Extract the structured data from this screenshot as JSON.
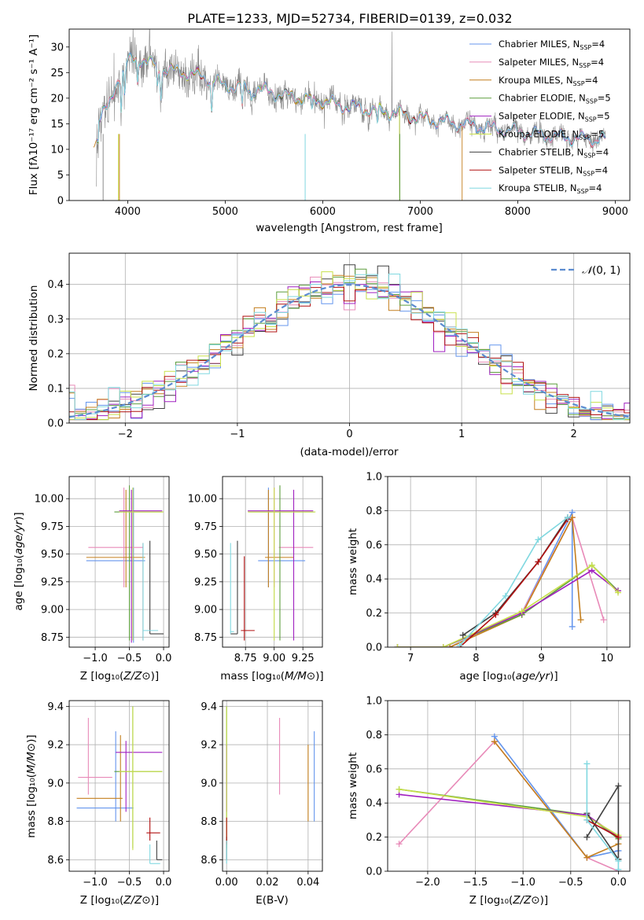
{
  "figure": {
    "title": "PLATE=1233, MJD=52734, FIBERID=0139, z=0.032"
  },
  "legend": [
    {
      "label": "Chabrier MILES, N",
      "sub": "SSP",
      "tail": "=4",
      "color": "#6495ED"
    },
    {
      "label": "Salpeter MILES, N",
      "sub": "SSP",
      "tail": "=4",
      "color": "#E88AB8"
    },
    {
      "label": "Kroupa MILES, N",
      "sub": "SSP",
      "tail": "=4",
      "color": "#C47F1E"
    },
    {
      "label": "Chabrier ELODIE, N",
      "sub": "SSP",
      "tail": "=5",
      "color": "#5E9E3E"
    },
    {
      "label": "Salpeter ELODIE, N",
      "sub": "SSP",
      "tail": "=5",
      "color": "#A020C0"
    },
    {
      "label": "Kroupa ELODIE, N",
      "sub": "SSP",
      "tail": "=5",
      "color": "#C8E04A"
    },
    {
      "label": "Chabrier STELIB, N",
      "sub": "SSP",
      "tail": "=4",
      "color": "#404040"
    },
    {
      "label": "Salpeter STELIB, N",
      "sub": "SSP",
      "tail": "=4",
      "color": "#B01010"
    },
    {
      "label": "Kroupa STELIB, N",
      "sub": "SSP",
      "tail": "=4",
      "color": "#80D8E0"
    }
  ],
  "chart_data": [
    {
      "id": "spectrum",
      "type": "line",
      "title": "PLATE=1233, MJD=52734, FIBERID=0139, z=0.032",
      "xlabel": "wavelength [Angstrom, rest frame]",
      "ylabel": "Flux [f_λ 10^-17 erg cm^-2 s^-1 A^-1]",
      "xlim": [
        3400,
        9150
      ],
      "ylim": [
        0,
        33.5
      ],
      "xticks": [
        "4000",
        "5000",
        "6000",
        "7000",
        "8000",
        "9000"
      ],
      "yticks": [
        "0",
        "5",
        "10",
        "15",
        "20",
        "25",
        "30"
      ],
      "data_continuum": {
        "x": [
          3700,
          3800,
          3900,
          4000,
          4100,
          4200,
          4400,
          4600,
          4800,
          5000,
          5200,
          5400,
          5600,
          5800,
          6000,
          6200,
          6400,
          6600,
          6800,
          7000,
          7200,
          7400,
          7600,
          7800,
          8000,
          8200,
          8400,
          8600,
          8800,
          8900
        ],
        "y": [
          16,
          18,
          24,
          27,
          28,
          27,
          25.5,
          25,
          24,
          22.5,
          22,
          21.5,
          20.5,
          20,
          19.5,
          18.5,
          18,
          17.5,
          17,
          16,
          15.5,
          15,
          14.5,
          14,
          13.5,
          13,
          12.5,
          12.2,
          12,
          12
        ]
      }
    },
    {
      "id": "residuals",
      "type": "histogram",
      "xlabel": "(data-model)/error",
      "ylabel": "Normed distribution",
      "xlim": [
        -2.5,
        2.5
      ],
      "ylim": [
        0,
        0.49
      ],
      "xticks": [
        "−2",
        "−1",
        "0",
        "1",
        "2"
      ],
      "yticks": [
        "0.0",
        "0.1",
        "0.2",
        "0.3",
        "0.4"
      ],
      "reference": {
        "label": "N(0,1)",
        "mu": 0,
        "sigma": 1
      }
    },
    {
      "id": "age-vs-Z",
      "type": "errorbar",
      "xlabel": "Z [log10(Z/Z⊙)]",
      "ylabel": "age [log10(age/yr)]",
      "xlim": [
        -1.38,
        0.08
      ],
      "ylim": [
        8.66,
        10.2
      ],
      "xticks": [
        "−1.0",
        "−0.5",
        "0.0"
      ],
      "yticks": [
        "8.75",
        "9.00",
        "9.25",
        "9.50",
        "9.75",
        "10.00"
      ]
    },
    {
      "id": "age-vs-mass",
      "type": "errorbar",
      "xlabel": "mass [log10(M/M⊙)]",
      "ylabel": "",
      "xlim": [
        8.55,
        9.42
      ],
      "ylim": [
        8.66,
        10.2
      ],
      "xticks": [
        "8.75",
        "9.00",
        "9.25"
      ],
      "yticks": [
        "8.75",
        "9.00",
        "9.25",
        "9.50",
        "9.75",
        "10.00"
      ]
    },
    {
      "id": "mass-weight-vs-age",
      "type": "line",
      "xlabel": "age [log10(age/yr)]",
      "ylabel": "mass weight",
      "xlim": [
        6.65,
        10.35
      ],
      "ylim": [
        0,
        1
      ],
      "xticks": [
        "7",
        "8",
        "9",
        "10"
      ],
      "yticks": [
        "0.0",
        "0.2",
        "0.4",
        "0.6",
        "0.8",
        "1.0"
      ],
      "series": [
        {
          "name": "Chabrier MILES, N_SSP=4",
          "x": [
            7.6,
            8.7,
            9.47,
            9.47
          ],
          "y": [
            0.0,
            0.2,
            0.79,
            0.12
          ]
        },
        {
          "name": "Salpeter MILES, N_SSP=4",
          "x": [
            7.6,
            8.7,
            9.47,
            9.95
          ],
          "y": [
            0.0,
            0.2,
            0.76,
            0.16
          ]
        },
        {
          "name": "Kroupa MILES, N_SSP=4",
          "x": [
            7.6,
            8.7,
            9.47,
            9.6
          ],
          "y": [
            0.0,
            0.19,
            0.76,
            0.16
          ]
        },
        {
          "name": "Chabrier ELODIE, N_SSP=5",
          "x": [
            6.8,
            7.5,
            8.7,
            9.77,
            10.17
          ],
          "y": [
            0.0,
            0.0,
            0.19,
            0.48,
            0.33
          ]
        },
        {
          "name": "Salpeter ELODIE, N_SSP=5",
          "x": [
            6.8,
            7.5,
            8.7,
            9.77,
            10.17
          ],
          "y": [
            0.0,
            0.0,
            0.2,
            0.45,
            0.33
          ]
        },
        {
          "name": "Kroupa ELODIE, N_SSP=5",
          "x": [
            6.8,
            7.5,
            8.7,
            9.77,
            10.17
          ],
          "y": [
            0.0,
            0.0,
            0.21,
            0.48,
            0.32
          ]
        },
        {
          "name": "Chabrier STELIB, N_SSP=4",
          "x": [
            7.8,
            8.3,
            8.95,
            9.4
          ],
          "y": [
            0.07,
            0.2,
            0.5,
            0.76
          ]
        },
        {
          "name": "Salpeter STELIB, N_SSP=4",
          "x": [
            7.75,
            8.3,
            8.95,
            9.4
          ],
          "y": [
            0.0,
            0.19,
            0.5,
            0.75
          ]
        },
        {
          "name": "Kroupa STELIB, N_SSP=4",
          "x": [
            7.75,
            8.45,
            8.95,
            9.4
          ],
          "y": [
            0.01,
            0.3,
            0.63,
            0.76
          ]
        }
      ]
    },
    {
      "id": "mass-vs-Z",
      "type": "errorbar",
      "xlabel": "Z [log10(Z/Z⊙)]",
      "ylabel": "mass [log10(M/M⊙)]",
      "xlim": [
        -1.38,
        0.08
      ],
      "ylim": [
        8.54,
        9.43
      ],
      "xticks": [
        "−1.0",
        "−0.5",
        "0.0"
      ],
      "yticks": [
        "8.6",
        "8.8",
        "9.0",
        "9.2",
        "9.4"
      ]
    },
    {
      "id": "mass-vs-ebv",
      "type": "errorbar",
      "xlabel": "E(B-V)",
      "ylabel": "",
      "xlim": [
        -0.002,
        0.047
      ],
      "ylim": [
        8.54,
        9.43
      ],
      "xticks": [
        "0.00",
        "0.02",
        "0.04"
      ],
      "yticks": [
        "8.6",
        "8.8",
        "9.0",
        "9.2",
        "9.4"
      ]
    },
    {
      "id": "mass-weight-vs-Z",
      "type": "line",
      "xlabel": "Z [log10(Z/Z⊙)]",
      "ylabel": "mass weight",
      "xlim": [
        -2.42,
        0.12
      ],
      "ylim": [
        0,
        1
      ],
      "xticks": [
        "−2.0",
        "−1.5",
        "−1.0",
        "−0.5",
        "0.0"
      ],
      "yticks": [
        "0.0",
        "0.2",
        "0.4",
        "0.6",
        "0.8",
        "1.0"
      ],
      "series": [
        {
          "name": "Chabrier MILES, N_SSP=4",
          "x": [
            -1.3,
            -0.33,
            0.0
          ],
          "y": [
            0.79,
            0.08,
            0.12
          ]
        },
        {
          "name": "Salpeter MILES, N_SSP=4",
          "x": [
            -2.3,
            -1.3,
            -0.33,
            0.0
          ],
          "y": [
            0.16,
            0.76,
            0.08,
            0.0
          ]
        },
        {
          "name": "Kroupa MILES, N_SSP=4",
          "x": [
            -1.3,
            -0.33,
            0.0
          ],
          "y": [
            0.76,
            0.08,
            0.16
          ]
        },
        {
          "name": "Chabrier ELODIE, N_SSP=5",
          "x": [
            -2.3,
            -0.33,
            0.0
          ],
          "y": [
            0.48,
            0.33,
            0.19
          ]
        },
        {
          "name": "Salpeter ELODIE, N_SSP=5",
          "x": [
            -2.3,
            -0.33,
            0.0
          ],
          "y": [
            0.45,
            0.33,
            0.2
          ]
        },
        {
          "name": "Kroupa ELODIE, N_SSP=5",
          "x": [
            -2.3,
            -0.33,
            0.0
          ],
          "y": [
            0.48,
            0.32,
            0.21
          ]
        },
        {
          "name": "Chabrier STELIB, N_SSP=4",
          "x": [
            -0.33,
            0.0,
            0.0,
            -0.33
          ],
          "y": [
            0.2,
            0.5,
            0.07,
            0.34
          ]
        },
        {
          "name": "Salpeter STELIB, N_SSP=4",
          "x": [
            -0.33,
            0.0
          ],
          "y": [
            0.3,
            0.2
          ]
        },
        {
          "name": "Kroupa STELIB, N_SSP=4",
          "x": [
            -0.33,
            -0.33,
            0.0,
            0.0
          ],
          "y": [
            0.63,
            0.3,
            0.06,
            0.01
          ]
        }
      ]
    }
  ],
  "errorbars": {
    "age_Z": [
      {
        "x": -0.44,
        "y": 9.44,
        "xlo": -1.13,
        "xhi": -0.27,
        "ylo": 8.7,
        "yhi": 10.1,
        "c": 0
      },
      {
        "x": -0.58,
        "y": 9.56,
        "xlo": -1.1,
        "xhi": -0.3,
        "ylo": 9.2,
        "yhi": 10.1,
        "c": 1
      },
      {
        "x": -0.55,
        "y": 9.47,
        "xlo": -1.13,
        "xhi": -0.27,
        "ylo": 9.2,
        "yhi": 10.08,
        "c": 2
      },
      {
        "x": -0.5,
        "y": 9.88,
        "xlo": -0.72,
        "xhi": -0.02,
        "ylo": 8.72,
        "yhi": 10.12,
        "c": 3
      },
      {
        "x": -0.47,
        "y": 9.89,
        "xlo": -0.65,
        "xhi": -0.02,
        "ylo": 8.7,
        "yhi": 10.08,
        "c": 4
      },
      {
        "x": -0.45,
        "y": 9.88,
        "xlo": -0.65,
        "xhi": 0.0,
        "ylo": 8.72,
        "yhi": 10.1,
        "c": 5
      },
      {
        "x": -0.2,
        "y": 8.78,
        "xlo": -0.2,
        "xhi": 0.0,
        "ylo": 8.78,
        "yhi": 9.62,
        "c": 6
      },
      {
        "x": -0.3,
        "y": 9.3,
        "xlo": -0.3,
        "xhi": -0.3,
        "ylo": 8.72,
        "yhi": 9.6,
        "c": 7
      },
      {
        "x": -0.3,
        "y": 8.81,
        "xlo": -0.3,
        "xhi": -0.08,
        "ylo": 8.72,
        "yhi": 9.6,
        "c": 8
      }
    ],
    "age_mass": [
      {
        "x": 8.95,
        "y": 9.44,
        "xlo": 8.86,
        "xhi": 9.27,
        "ylo": 9.2,
        "yhi": 10.1,
        "c": 0
      },
      {
        "x": 9.0,
        "y": 9.56,
        "xlo": 9.04,
        "xhi": 9.34,
        "ylo": 9.2,
        "yhi": 10.1,
        "c": 1
      },
      {
        "x": 8.95,
        "y": 9.47,
        "xlo": 8.92,
        "xhi": 9.17,
        "ylo": 9.2,
        "yhi": 10.08,
        "c": 2
      },
      {
        "x": 9.05,
        "y": 9.88,
        "xlo": 8.78,
        "xhi": 9.35,
        "ylo": 8.72,
        "yhi": 10.12,
        "c": 3
      },
      {
        "x": 9.17,
        "y": 9.89,
        "xlo": 8.77,
        "xhi": 9.34,
        "ylo": 8.72,
        "yhi": 10.08,
        "c": 4
      },
      {
        "x": 9.0,
        "y": 9.88,
        "xlo": 8.77,
        "xhi": 9.36,
        "ylo": 8.72,
        "yhi": 10.1,
        "c": 5
      },
      {
        "x": 8.68,
        "y": 8.78,
        "xlo": 8.62,
        "xhi": 8.68,
        "ylo": 8.78,
        "yhi": 9.62,
        "c": 6
      },
      {
        "x": 8.74,
        "y": 8.81,
        "xlo": 8.71,
        "xhi": 8.83,
        "ylo": 8.72,
        "yhi": 9.48,
        "c": 7
      },
      {
        "x": 8.62,
        "y": 8.8,
        "xlo": 8.62,
        "xhi": 8.65,
        "ylo": 8.78,
        "yhi": 9.6,
        "c": 8
      }
    ],
    "mass_Z": [
      {
        "x": -0.7,
        "y": 8.87,
        "xlo": -1.27,
        "xhi": -0.44,
        "ylo": 8.8,
        "yhi": 9.27,
        "c": 0
      },
      {
        "x": -1.1,
        "y": 9.03,
        "xlo": -1.25,
        "xhi": -0.75,
        "ylo": 8.94,
        "yhi": 9.34,
        "c": 1
      },
      {
        "x": -0.63,
        "y": 8.92,
        "xlo": -1.27,
        "xhi": -0.6,
        "ylo": 8.8,
        "yhi": 9.25,
        "c": 2
      },
      {
        "x": -0.45,
        "y": 9.06,
        "xlo": -0.72,
        "xhi": -0.02,
        "ylo": 8.66,
        "yhi": 9.4,
        "c": 3
      },
      {
        "x": -0.55,
        "y": 9.16,
        "xlo": -0.7,
        "xhi": -0.02,
        "ylo": 8.85,
        "yhi": 9.22,
        "c": 4
      },
      {
        "x": -0.45,
        "y": 9.06,
        "xlo": -0.65,
        "xhi": -0.02,
        "ylo": 8.65,
        "yhi": 9.4,
        "c": 5
      },
      {
        "x": -0.1,
        "y": 8.6,
        "xlo": -0.1,
        "xhi": -0.02,
        "ylo": 8.6,
        "yhi": 8.7,
        "c": 6
      },
      {
        "x": -0.2,
        "y": 8.74,
        "xlo": -0.25,
        "xhi": -0.05,
        "ylo": 8.7,
        "yhi": 8.82,
        "c": 7
      },
      {
        "x": -0.2,
        "y": 8.58,
        "xlo": -0.2,
        "xhi": -0.05,
        "ylo": 8.58,
        "yhi": 8.68,
        "c": 8
      }
    ],
    "mass_ebv": [
      {
        "x": 0.043,
        "y": 9.0,
        "xlo": 0.043,
        "xhi": 0.043,
        "ylo": 8.8,
        "yhi": 9.27,
        "c": 0
      },
      {
        "x": 0.026,
        "y": 9.14,
        "xlo": 0.026,
        "xhi": 0.026,
        "ylo": 8.94,
        "yhi": 9.34,
        "c": 1
      },
      {
        "x": 0.04,
        "y": 9.0,
        "xlo": 0.04,
        "xhi": 0.04,
        "ylo": 8.8,
        "yhi": 9.2,
        "c": 2
      },
      {
        "x": 0.0,
        "y": 9.06,
        "xlo": 0.0,
        "xhi": 0.0,
        "ylo": 8.66,
        "yhi": 9.4,
        "c": 3
      },
      {
        "x": 0.0,
        "y": 9.1,
        "xlo": 0.0,
        "xhi": 0.0,
        "ylo": 8.85,
        "yhi": 9.2,
        "c": 4
      },
      {
        "x": 0.0,
        "y": 9.0,
        "xlo": 0.0,
        "xhi": 0.0,
        "ylo": 8.65,
        "yhi": 9.4,
        "c": 5
      },
      {
        "x": 0.0,
        "y": 8.65,
        "xlo": 0.0,
        "xhi": 0.0,
        "ylo": 8.6,
        "yhi": 8.72,
        "c": 6
      },
      {
        "x": 0.0,
        "y": 8.74,
        "xlo": 0.0,
        "xhi": 0.0,
        "ylo": 8.68,
        "yhi": 8.82,
        "c": 7
      },
      {
        "x": 0.0,
        "y": 8.62,
        "xlo": 0.0,
        "xhi": 0.0,
        "ylo": 8.58,
        "yhi": 8.7,
        "c": 8
      }
    ]
  }
}
